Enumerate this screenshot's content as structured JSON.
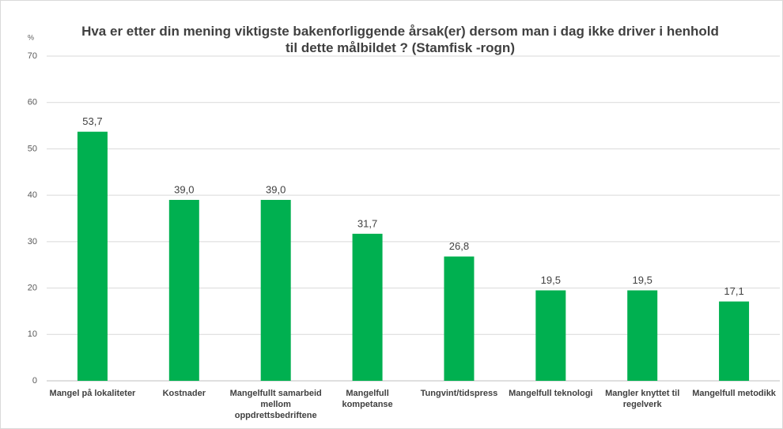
{
  "chart_data": {
    "type": "bar",
    "title": "Hva er etter din mening viktigste bakenforliggende årsak(er) dersom man i dag ikke driver i henhold til dette målbildet ? (Stamfisk -rogn)",
    "y_label": "%",
    "categories": [
      "Mangel på lokaliteter",
      "Kostnader",
      "Mangelfullt samarbeid mellom oppdrettsbedriftene",
      "Mangelfull kompetanse",
      "Tungvint/tidspress",
      "Mangelfull teknologi",
      "Mangler knyttet til regelverk",
      "Mangelfull metodikk"
    ],
    "values": [
      53.7,
      39.0,
      39.0,
      31.7,
      26.8,
      19.5,
      19.5,
      17.1
    ],
    "value_labels": [
      "53,7",
      "39,0",
      "39,0",
      "31,7",
      "26,8",
      "19,5",
      "19,5",
      "17,1"
    ],
    "color": "#00b050",
    "ylim": [
      0,
      70
    ],
    "yticks": [
      0,
      10,
      20,
      30,
      40,
      50,
      60,
      70
    ],
    "grid": true
  }
}
